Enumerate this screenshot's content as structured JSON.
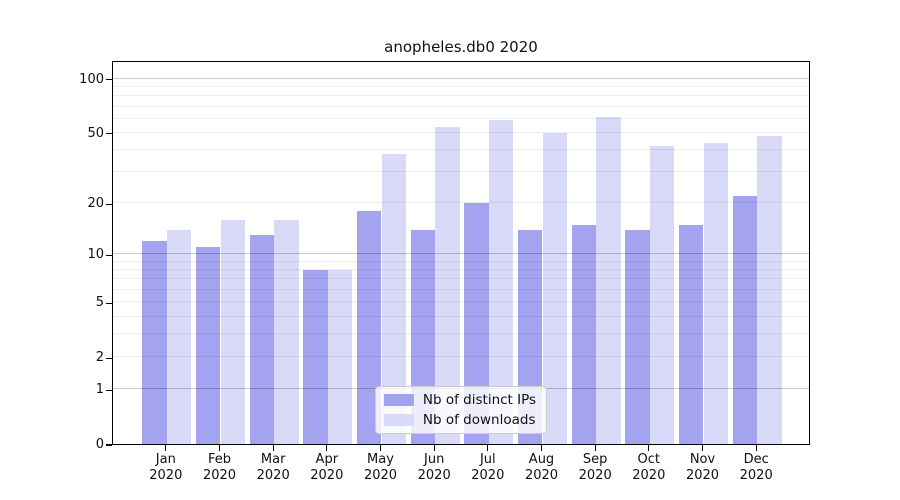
{
  "chart_data": {
    "type": "bar",
    "title": "anopheles.db0 2020",
    "categories": [
      "Jan 2020",
      "Feb 2020",
      "Mar 2020",
      "Apr 2020",
      "May 2020",
      "Jun 2020",
      "Jul 2020",
      "Aug 2020",
      "Sep 2020",
      "Oct 2020",
      "Nov 2020",
      "Dec 2020"
    ],
    "series": [
      {
        "name": "Nb of distinct IPs",
        "color": "#a3a3f0",
        "values": [
          12,
          11,
          13,
          8,
          18,
          14,
          20,
          14,
          15,
          14,
          15,
          22
        ]
      },
      {
        "name": "Nb of downloads",
        "color": "#d9d9f8",
        "values": [
          14,
          16,
          16,
          8,
          38,
          54,
          59,
          50,
          61,
          42,
          44,
          48
        ]
      }
    ],
    "xlabel": "",
    "ylabel": "",
    "yscale": "log1p",
    "ylim": [
      0,
      127
    ],
    "yticks": [
      0,
      1,
      2,
      5,
      10,
      20,
      50,
      100
    ],
    "gridlines_major": [
      1,
      10,
      100
    ],
    "gridlines_minor": [
      2,
      3,
      4,
      5,
      6,
      7,
      8,
      9,
      20,
      30,
      40,
      50,
      60,
      70,
      80,
      90
    ],
    "grid": true,
    "legend_position": "lower center",
    "legend": [
      "Nb of distinct IPs",
      "Nb of downloads"
    ]
  }
}
